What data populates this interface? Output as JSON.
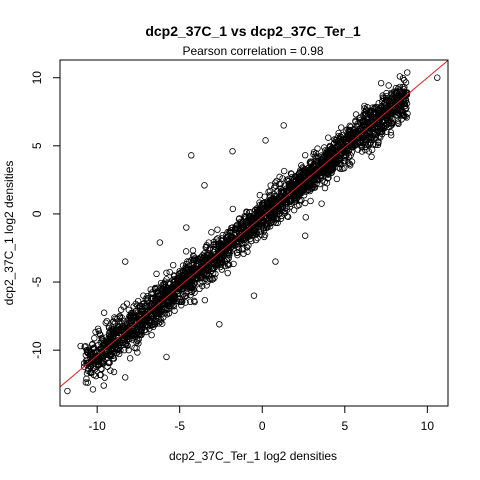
{
  "chart_data": {
    "type": "scatter",
    "title": "dcp2_37C_1 vs dcp2_37C_Ter_1",
    "subtitle": "Pearson correlation =  0.98",
    "xlabel": "dcp2_37C_Ter_1 log2 densities",
    "ylabel": "dcp2_37C_1 log2 densities",
    "xlim": [
      -12.25,
      11.25
    ],
    "ylim": [
      -14.1,
      11.3
    ],
    "xticks": [
      -10,
      -5,
      0,
      5,
      10
    ],
    "yticks": [
      -10,
      -5,
      0,
      5,
      10
    ],
    "grid": false,
    "marker": "open-circle",
    "point_color": "#000000",
    "fit_line": {
      "color": "#e41a1c",
      "intercept": -0.2,
      "slope": 1.02
    },
    "series": [
      {
        "values_summary": "dense cloud of thousands of points concentrated between about -8 and 6 on both axes",
        "points": [
          [
            -11.8,
            -13.0
          ],
          [
            -11.0,
            -9.7
          ],
          [
            -10.5,
            -10.9
          ],
          [
            -10.2,
            -11.3
          ],
          [
            -9.9,
            -8.6
          ],
          [
            -9.6,
            -10.4
          ],
          [
            -9.3,
            -9.6
          ],
          [
            -9.2,
            -11.5
          ],
          [
            -9.0,
            -7.9
          ],
          [
            -8.7,
            -9.1
          ],
          [
            -8.4,
            -6.8
          ],
          [
            -8.1,
            -8.7
          ],
          [
            -8.0,
            -10.6
          ],
          [
            -7.8,
            -7.3
          ],
          [
            -7.5,
            -9.5
          ],
          [
            -7.2,
            -6.0
          ],
          [
            -7.0,
            -7.8
          ],
          [
            -6.7,
            -8.9
          ],
          [
            -6.5,
            -5.5
          ],
          [
            -6.2,
            -6.9
          ],
          [
            -6.0,
            -7.6
          ],
          [
            -5.8,
            -4.8
          ],
          [
            -5.5,
            -6.3
          ],
          [
            -5.3,
            -5.0
          ],
          [
            -5.0,
            -4.2
          ],
          [
            -4.8,
            -5.9
          ],
          [
            -4.5,
            -4.9
          ],
          [
            -4.3,
            -3.4
          ],
          [
            -4.0,
            -4.4
          ],
          [
            -3.8,
            -5.5
          ],
          [
            -3.5,
            -3.1
          ],
          [
            -3.2,
            -2.6
          ],
          [
            -3.0,
            -4.0
          ],
          [
            -2.8,
            -2.2
          ],
          [
            -2.5,
            -3.6
          ],
          [
            -2.2,
            -1.8
          ],
          [
            -2.0,
            -2.9
          ],
          [
            -1.8,
            -1.0
          ],
          [
            -1.5,
            -2.4
          ],
          [
            -1.3,
            -0.7
          ],
          [
            -1.0,
            -1.8
          ],
          [
            -0.8,
            -0.2
          ],
          [
            -0.5,
            -1.4
          ],
          [
            -0.3,
            0.3
          ],
          [
            0.0,
            -0.6
          ],
          [
            0.3,
            0.8
          ],
          [
            0.5,
            -0.2
          ],
          [
            0.8,
            1.3
          ],
          [
            1.0,
            0.2
          ],
          [
            1.3,
            1.6
          ],
          [
            1.5,
            0.9
          ],
          [
            1.8,
            2.1
          ],
          [
            2.0,
            1.2
          ],
          [
            2.3,
            2.6
          ],
          [
            2.5,
            1.9
          ],
          [
            2.8,
            3.1
          ],
          [
            3.0,
            2.3
          ],
          [
            3.3,
            3.8
          ],
          [
            3.5,
            2.8
          ],
          [
            3.8,
            4.2
          ],
          [
            4.0,
            3.2
          ],
          [
            4.3,
            4.8
          ],
          [
            4.5,
            3.8
          ],
          [
            4.8,
            5.3
          ],
          [
            5.0,
            4.1
          ],
          [
            5.3,
            5.8
          ],
          [
            5.5,
            4.9
          ],
          [
            5.8,
            6.1
          ],
          [
            6.0,
            5.4
          ],
          [
            6.2,
            6.6
          ],
          [
            6.5,
            6.0
          ],
          [
            7.0,
            7.2
          ],
          [
            7.4,
            6.9
          ],
          [
            8.0,
            7.9
          ],
          [
            8.7,
            8.3
          ],
          [
            7.2,
            9.6
          ],
          [
            10.6,
            10.0
          ],
          [
            8.6,
            7.2
          ],
          [
            -3.5,
            2.1
          ],
          [
            -4.3,
            4.3
          ],
          [
            -1.8,
            4.6
          ],
          [
            0.2,
            5.4
          ],
          [
            1.3,
            6.5
          ],
          [
            -4.6,
            -1.0
          ],
          [
            -6.2,
            -2.1
          ],
          [
            -8.3,
            -3.5
          ],
          [
            -2.6,
            -8.1
          ],
          [
            -0.5,
            -6.0
          ],
          [
            0.8,
            -3.5
          ],
          [
            2.6,
            -1.6
          ],
          [
            -5.8,
            -10.5
          ],
          [
            -8.3,
            -12.0
          ],
          [
            -9.6,
            -12.6
          ],
          [
            2.6,
            0.8
          ],
          [
            3.8,
            1.9
          ]
        ],
        "dense_cloud": {
          "x_start": -10.8,
          "x_end": 8.8,
          "count": 2600,
          "slope": 1.02,
          "intercept": -0.2,
          "spread": 0.8
        }
      }
    ]
  }
}
